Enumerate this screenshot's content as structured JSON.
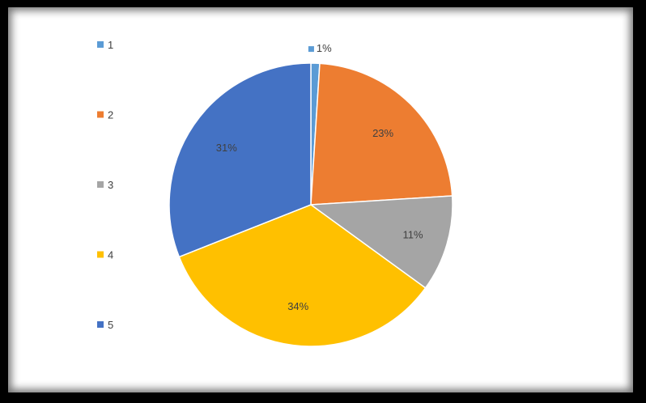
{
  "chart_data": {
    "type": "pie",
    "categories": [
      "1",
      "2",
      "3",
      "4",
      "5"
    ],
    "values": [
      1,
      23,
      11,
      34,
      31
    ],
    "data_labels": [
      "1%",
      "23%",
      "11%",
      "34%",
      "31%"
    ],
    "colors": [
      "#5B9BD5",
      "#ED7D31",
      "#A5A5A5",
      "#FFC000",
      "#4472C4"
    ],
    "start_angle_deg": 0,
    "direction": "clockwise",
    "legend_position": "left"
  }
}
